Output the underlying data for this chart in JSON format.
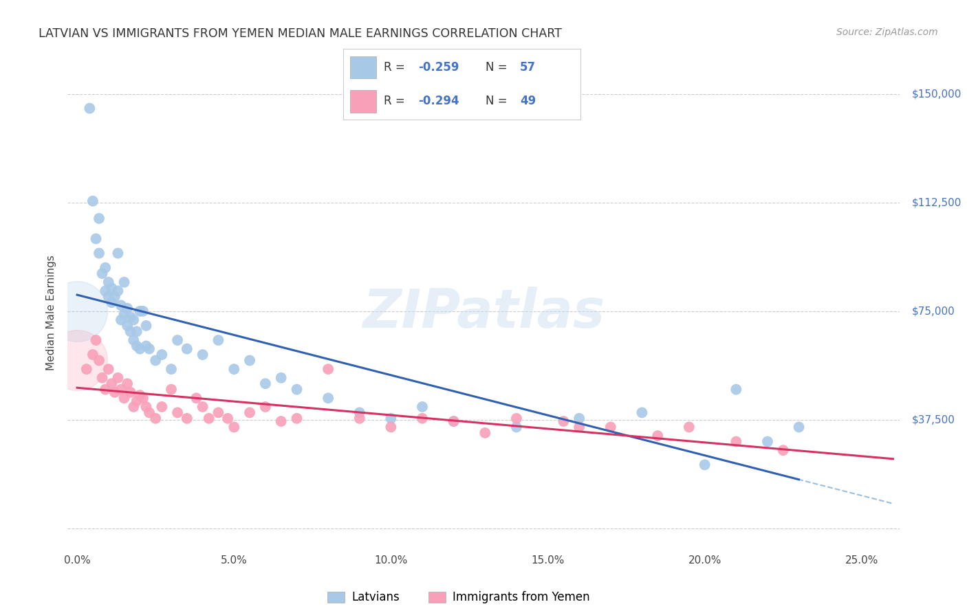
{
  "title": "LATVIAN VS IMMIGRANTS FROM YEMEN MEDIAN MALE EARNINGS CORRELATION CHART",
  "source": "Source: ZipAtlas.com",
  "ylabel": "Median Male Earnings",
  "yticks": [
    0,
    37500,
    75000,
    112500,
    150000
  ],
  "ytick_labels": [
    "",
    "$37,500",
    "$75,000",
    "$112,500",
    "$150,000"
  ],
  "xtick_vals": [
    0.0,
    0.05,
    0.1,
    0.15,
    0.2,
    0.25
  ],
  "xtick_labels": [
    "0.0%",
    "5.0%",
    "10.0%",
    "15.0%",
    "20.0%",
    "25.0%"
  ],
  "xmin": -0.003,
  "xmax": 0.262,
  "ymin": -8000,
  "ymax": 157000,
  "blue_color": "#a8c8e8",
  "pink_color": "#f8a0b8",
  "blue_line_color": "#3060b0",
  "pink_line_color": "#d83060",
  "dashed_color": "#90b8d8",
  "latvians_label": "Latvians",
  "yemen_label": "Immigrants from Yemen",
  "R_latvians": "-0.259",
  "N_latvians": "57",
  "R_yemen": "-0.294",
  "N_yemen": "49",
  "latvians_x": [
    0.004,
    0.005,
    0.006,
    0.007,
    0.007,
    0.008,
    0.009,
    0.009,
    0.01,
    0.01,
    0.011,
    0.011,
    0.012,
    0.013,
    0.013,
    0.014,
    0.014,
    0.015,
    0.015,
    0.016,
    0.016,
    0.017,
    0.017,
    0.018,
    0.018,
    0.019,
    0.019,
    0.02,
    0.02,
    0.021,
    0.022,
    0.022,
    0.023,
    0.025,
    0.027,
    0.03,
    0.032,
    0.035,
    0.04,
    0.045,
    0.05,
    0.055,
    0.06,
    0.065,
    0.07,
    0.08,
    0.09,
    0.1,
    0.11,
    0.12,
    0.14,
    0.16,
    0.18,
    0.2,
    0.21,
    0.22,
    0.23
  ],
  "latvians_y": [
    145000,
    113000,
    100000,
    95000,
    107000,
    88000,
    82000,
    90000,
    80000,
    85000,
    83000,
    78000,
    80000,
    82000,
    95000,
    77000,
    72000,
    74000,
    85000,
    76000,
    70000,
    68000,
    73000,
    65000,
    72000,
    63000,
    68000,
    62000,
    75000,
    75000,
    63000,
    70000,
    62000,
    58000,
    60000,
    55000,
    65000,
    62000,
    60000,
    65000,
    55000,
    58000,
    50000,
    52000,
    48000,
    45000,
    40000,
    38000,
    42000,
    37000,
    35000,
    38000,
    40000,
    22000,
    48000,
    30000,
    35000
  ],
  "yemen_x": [
    0.003,
    0.005,
    0.006,
    0.007,
    0.008,
    0.009,
    0.01,
    0.011,
    0.012,
    0.013,
    0.014,
    0.015,
    0.016,
    0.017,
    0.018,
    0.019,
    0.02,
    0.021,
    0.022,
    0.023,
    0.025,
    0.027,
    0.03,
    0.032,
    0.035,
    0.038,
    0.04,
    0.042,
    0.045,
    0.048,
    0.05,
    0.055,
    0.06,
    0.065,
    0.07,
    0.08,
    0.09,
    0.1,
    0.11,
    0.12,
    0.13,
    0.14,
    0.155,
    0.16,
    0.17,
    0.185,
    0.195,
    0.21,
    0.225
  ],
  "yemen_y": [
    55000,
    60000,
    65000,
    58000,
    52000,
    48000,
    55000,
    50000,
    47000,
    52000,
    48000,
    45000,
    50000,
    47000,
    42000,
    44000,
    46000,
    45000,
    42000,
    40000,
    38000,
    42000,
    48000,
    40000,
    38000,
    45000,
    42000,
    38000,
    40000,
    38000,
    35000,
    40000,
    42000,
    37000,
    38000,
    55000,
    38000,
    35000,
    38000,
    37000,
    33000,
    38000,
    37000,
    35000,
    35000,
    32000,
    35000,
    30000,
    27000
  ]
}
